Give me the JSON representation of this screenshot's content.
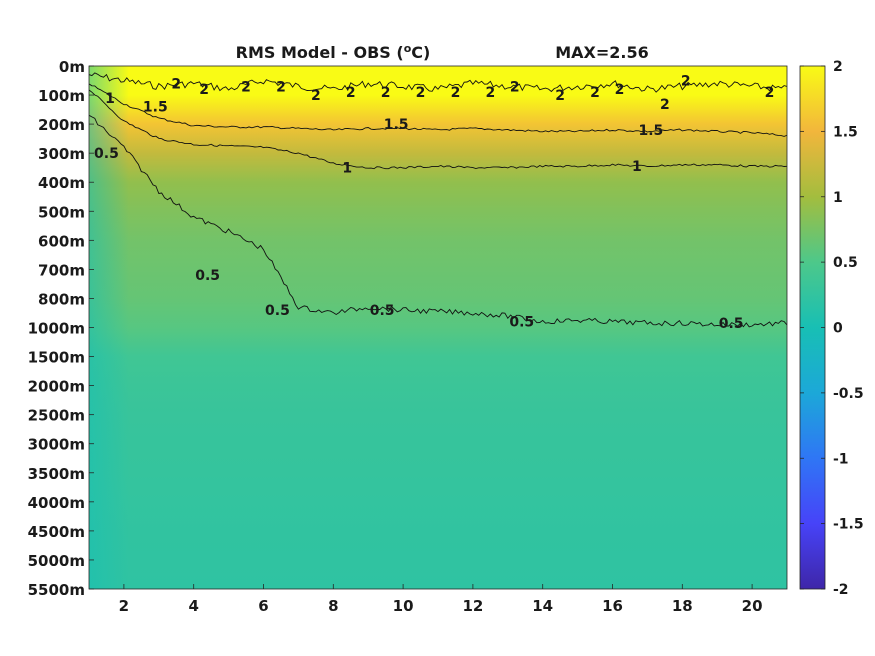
{
  "chart_data": {
    "type": "heatmap",
    "title": "RMS Model - OBS (",
    "title_unit_sup": "o",
    "title_unit": "C)",
    "max_label": "MAX=2.56",
    "xlabel": "",
    "ylabel": "",
    "x_range": [
      1,
      21
    ],
    "x_ticks": [
      2,
      4,
      6,
      8,
      10,
      12,
      14,
      16,
      18,
      20
    ],
    "y_ticks": [
      "0m",
      "100m",
      "200m",
      "300m",
      "400m",
      "500m",
      "600m",
      "700m",
      "800m",
      "1000m",
      "1500m",
      "2000m",
      "2500m",
      "3000m",
      "3500m",
      "4000m",
      "4500m",
      "5000m",
      "5500m"
    ],
    "colorbar": {
      "range": [
        -2,
        2
      ],
      "ticks": [
        2,
        1.5,
        1,
        0.5,
        0,
        -0.5,
        -1,
        -1.5,
        -2
      ],
      "tick_labels": [
        "2",
        "1.5",
        "1",
        "0.5",
        "0",
        "-0.5",
        "-1",
        "-1.5",
        "-2"
      ],
      "colors": [
        "#3e26a8",
        "#4743f8",
        "#2f76f5",
        "#1ca8d8",
        "#18bfb4",
        "#4dc88a",
        "#a3bd3e",
        "#f2b63c",
        "#f9fb15"
      ]
    },
    "value_profile_by_depth_level": [
      2.3,
      2.0,
      1.6,
      1.2,
      0.9,
      0.8,
      0.72,
      0.68,
      0.64,
      0.56,
      0.38,
      0.33,
      0.3,
      0.28,
      0.27,
      0.25,
      0.24,
      0.23,
      0.22
    ],
    "contours": [
      {
        "level": 2,
        "label": "2",
        "depth_level_by_x": [
          0.3,
          0.5,
          0.7,
          0.6,
          0.8,
          0.5,
          0.7,
          0.8,
          0.6,
          0.7,
          0.8,
          0.6,
          0.7,
          0.8,
          0.7,
          0.6,
          0.8,
          0.7,
          0.6,
          0.7,
          0.8
        ]
      },
      {
        "level": 1.5,
        "label": "1.5",
        "depth_level_by_x": [
          0.6,
          1.3,
          1.8,
          2.05,
          2.1,
          2.1,
          2.15,
          2.2,
          2.15,
          2.15,
          2.2,
          2.15,
          2.2,
          2.25,
          2.25,
          2.2,
          2.25,
          2.2,
          2.25,
          2.3,
          2.4
        ]
      },
      {
        "level": 1,
        "label": "1",
        "depth_level_by_x": [
          0.8,
          1.9,
          2.5,
          2.7,
          2.75,
          2.8,
          3.0,
          3.35,
          3.5,
          3.5,
          3.45,
          3.5,
          3.5,
          3.45,
          3.45,
          3.4,
          3.45,
          3.4,
          3.4,
          3.45,
          3.45
        ]
      },
      {
        "level": 0.5,
        "label": "0.5",
        "depth_level_by_x": [
          1.7,
          2.8,
          4.3,
          5.2,
          5.7,
          6.3,
          8.3,
          8.5,
          8.3,
          8.4,
          8.45,
          8.5,
          8.6,
          8.8,
          8.75,
          8.8,
          8.85,
          8.85,
          8.9,
          8.9,
          8.85
        ]
      }
    ],
    "contour_labels": [
      {
        "text": "2",
        "x": 3.5,
        "d": 0.6
      },
      {
        "text": "2",
        "x": 4.3,
        "d": 0.8
      },
      {
        "text": "2",
        "x": 5.5,
        "d": 0.7
      },
      {
        "text": "2",
        "x": 6.5,
        "d": 0.7
      },
      {
        "text": "2",
        "x": 7.5,
        "d": 1.0
      },
      {
        "text": "2",
        "x": 8.5,
        "d": 0.9
      },
      {
        "text": "2",
        "x": 9.5,
        "d": 0.9
      },
      {
        "text": "2",
        "x": 10.5,
        "d": 0.9
      },
      {
        "text": "2",
        "x": 11.5,
        "d": 0.9
      },
      {
        "text": "2",
        "x": 12.5,
        "d": 0.9
      },
      {
        "text": "2",
        "x": 13.2,
        "d": 0.7
      },
      {
        "text": "2",
        "x": 14.5,
        "d": 1.0
      },
      {
        "text": "2",
        "x": 15.5,
        "d": 0.9
      },
      {
        "text": "2",
        "x": 16.2,
        "d": 0.8
      },
      {
        "text": "2",
        "x": 17.5,
        "d": 1.3
      },
      {
        "text": "2",
        "x": 18.1,
        "d": 0.5
      },
      {
        "text": "2",
        "x": 20.5,
        "d": 0.9
      },
      {
        "text": "1",
        "x": 1.6,
        "d": 1.1
      },
      {
        "text": "1.5",
        "x": 2.9,
        "d": 1.4
      },
      {
        "text": "1.5",
        "x": 9.8,
        "d": 2.0
      },
      {
        "text": "1.5",
        "x": 17.1,
        "d": 2.2
      },
      {
        "text": "1",
        "x": 8.4,
        "d": 3.5
      },
      {
        "text": "1",
        "x": 16.7,
        "d": 3.45
      },
      {
        "text": "0.5",
        "x": 1.5,
        "d": 3.0
      },
      {
        "text": "0.5",
        "x": 4.4,
        "d": 7.2
      },
      {
        "text": "0.5",
        "x": 6.4,
        "d": 8.4
      },
      {
        "text": "0.5",
        "x": 9.4,
        "d": 8.4
      },
      {
        "text": "0.5",
        "x": 13.4,
        "d": 8.8
      },
      {
        "text": "0.5",
        "x": 19.4,
        "d": 8.85
      }
    ]
  }
}
